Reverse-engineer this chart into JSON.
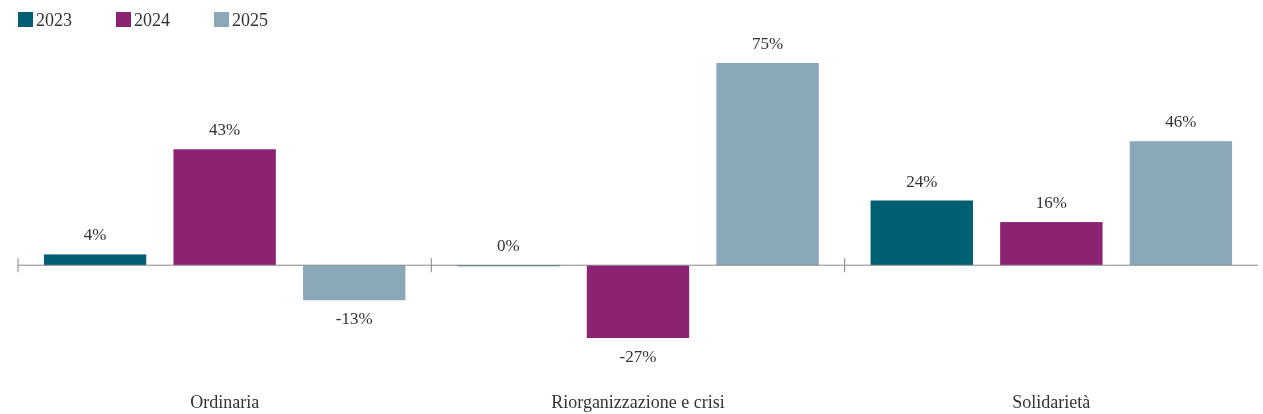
{
  "chart_data": {
    "type": "bar",
    "categories": [
      "Ordinaria",
      "Riorganizzazione e crisi",
      "Solidarietà"
    ],
    "legend": "top left",
    "series": [
      {
        "name": "2023",
        "color": "#005f73",
        "values": [
          4,
          0,
          24
        ],
        "value_labels": [
          "4%",
          "0%",
          "24%"
        ]
      },
      {
        "name": "2024",
        "color": "#8b2272",
        "values": [
          43,
          -27,
          16
        ],
        "value_labels": [
          "43%",
          "-27%",
          "16%"
        ]
      },
      {
        "name": "2025",
        "color": "#8aa8b8",
        "values": [
          -13,
          75,
          46
        ],
        "value_labels": [
          "-13%",
          "75%",
          "46%"
        ]
      }
    ]
  }
}
